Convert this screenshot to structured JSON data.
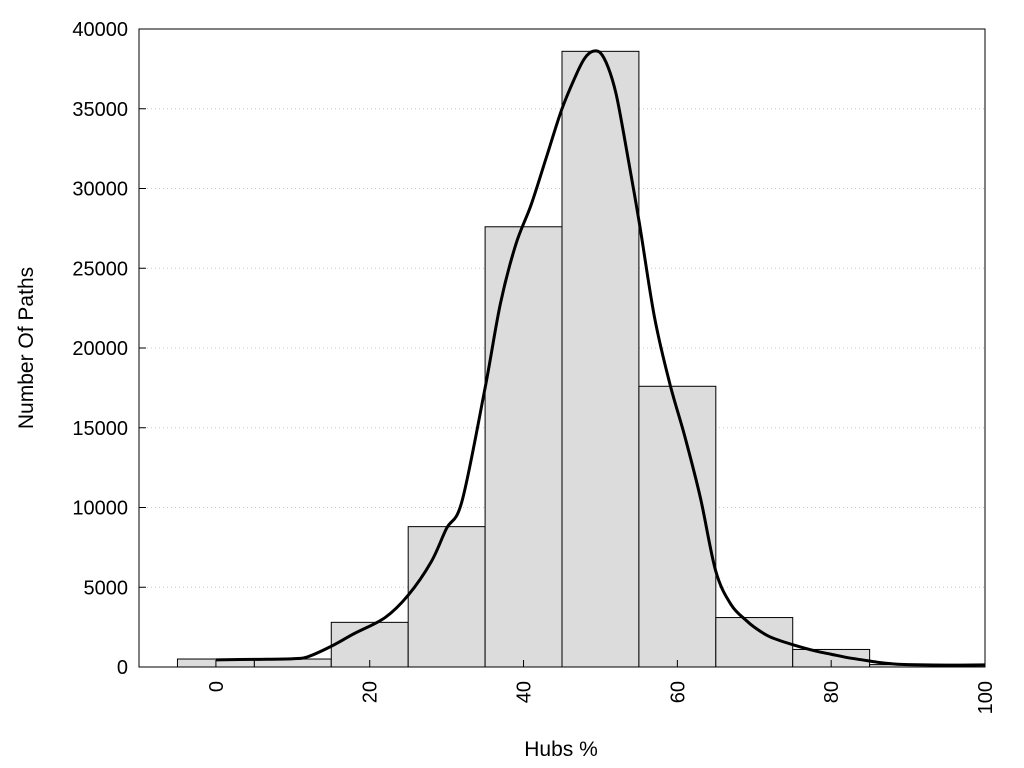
{
  "chart_data": {
    "type": "bar",
    "xlabel": "Hubs %",
    "ylabel": "Number Of Paths",
    "xlim": [
      -10,
      100
    ],
    "ylim": [
      0,
      40000
    ],
    "grid": "horizontal dotted",
    "x_ticks": [
      0,
      20,
      40,
      60,
      80,
      100
    ],
    "y_ticks": [
      0,
      5000,
      10000,
      15000,
      20000,
      25000,
      30000,
      35000,
      40000
    ],
    "bars": [
      {
        "x0": -5,
        "x1": 5,
        "value": 500
      },
      {
        "x0": 5,
        "x1": 15,
        "value": 500
      },
      {
        "x0": 15,
        "x1": 25,
        "value": 2800
      },
      {
        "x0": 25,
        "x1": 35,
        "value": 8800
      },
      {
        "x0": 35,
        "x1": 45,
        "value": 27600
      },
      {
        "x0": 45,
        "x1": 55,
        "value": 38600
      },
      {
        "x0": 55,
        "x1": 65,
        "value": 17600
      },
      {
        "x0": 65,
        "x1": 75,
        "value": 3100
      },
      {
        "x0": 75,
        "x1": 85,
        "value": 1100
      },
      {
        "x0": 85,
        "x1": 95,
        "value": 150
      },
      {
        "x0": 95,
        "x1": 100,
        "value": 100
      }
    ],
    "curve": {
      "x": [
        0,
        5,
        10,
        12,
        15,
        18,
        22,
        25,
        28,
        30,
        32,
        35,
        37,
        39,
        41,
        43,
        45,
        47,
        48,
        49,
        50,
        51,
        52,
        53,
        55,
        57,
        59,
        61,
        63,
        65,
        67,
        69,
        70,
        72,
        75,
        78,
        80,
        82,
        84,
        86,
        88,
        90,
        95,
        100
      ],
      "y": [
        450,
        480,
        520,
        650,
        1300,
        2100,
        3100,
        4500,
        6600,
        8700,
        10400,
        17500,
        22800,
        26500,
        29000,
        32000,
        35000,
        37300,
        38200,
        38600,
        38500,
        37600,
        36000,
        33500,
        28000,
        22000,
        17800,
        14400,
        10600,
        6000,
        3900,
        2900,
        2500,
        1900,
        1400,
        1000,
        800,
        600,
        450,
        300,
        200,
        150,
        120,
        130
      ]
    },
    "bar_fill": "#dcdcdc",
    "curve_color": "#000000"
  }
}
